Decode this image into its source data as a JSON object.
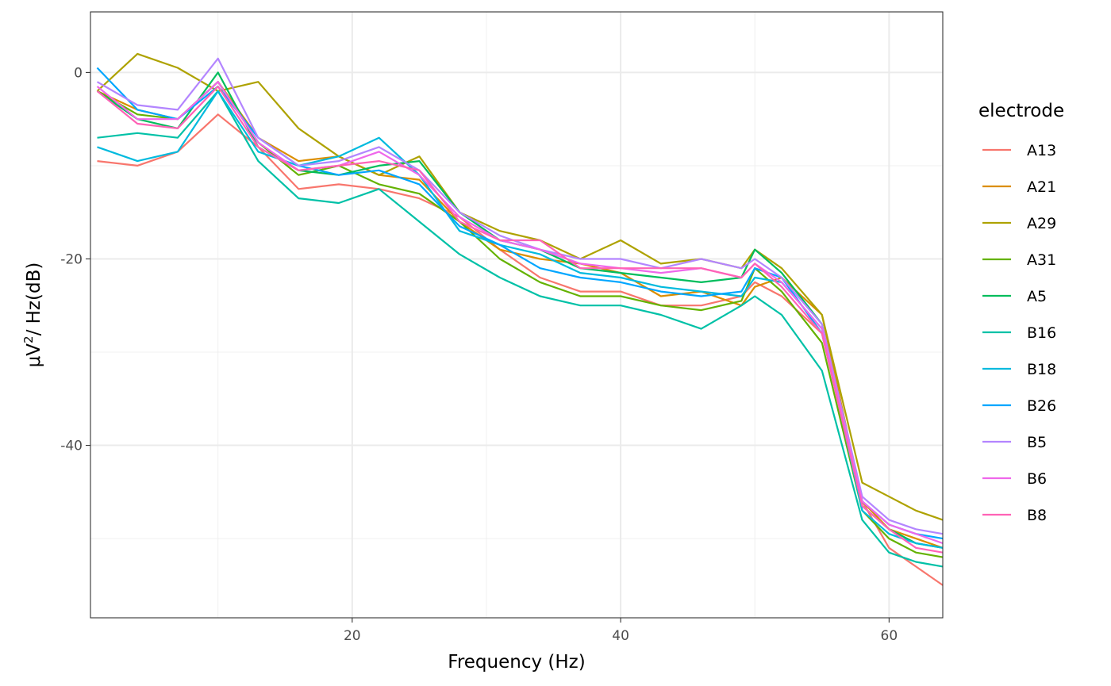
{
  "chart_data": {
    "type": "line",
    "title": "",
    "xlabel": "Frequency (Hz)",
    "ylabel_prefix": "μV",
    "ylabel_sup": "2",
    "ylabel_suffix": "/ Hz(dB)",
    "xlim": [
      0.5,
      64
    ],
    "ylim": [
      -58.5,
      6.5
    ],
    "x_ticks": [
      20,
      40,
      60
    ],
    "x_tick_labels": [
      "20",
      "40",
      "60"
    ],
    "y_ticks": [
      0,
      -20,
      -40
    ],
    "y_tick_labels": [
      "0",
      "-20",
      "-40"
    ],
    "x_minor": [
      10,
      30,
      50
    ],
    "y_minor": [
      -10,
      -30,
      -50
    ],
    "grid": true,
    "legend_title": "electrode",
    "legend_position": "right",
    "x": [
      1,
      4,
      7,
      10,
      13,
      16,
      19,
      22,
      25,
      28,
      31,
      34,
      37,
      40,
      43,
      46,
      49,
      50,
      52,
      55,
      58,
      60,
      62,
      64
    ],
    "series": [
      {
        "name": "A13",
        "color": "#F8766D",
        "values": [
          -9.5,
          -10.0,
          -8.5,
          -4.5,
          -8.0,
          -12.5,
          -12.0,
          -12.5,
          -13.5,
          -15.5,
          -19.0,
          -22.0,
          -23.5,
          -23.5,
          -25.0,
          -25.0,
          -24.0,
          -22.5,
          -24.0,
          -28.0,
          -46.0,
          -51.0,
          -53.0,
          -55.0
        ]
      },
      {
        "name": "A21",
        "color": "#DB8E00",
        "values": [
          -2.0,
          -4.0,
          -5.0,
          -1.0,
          -7.0,
          -9.5,
          -9.0,
          -11.0,
          -11.5,
          -16.0,
          -19.0,
          -20.0,
          -20.5,
          -21.5,
          -24.0,
          -23.5,
          -25.0,
          -23.0,
          -22.0,
          -26.0,
          -46.0,
          -49.0,
          -50.0,
          -51.0
        ]
      },
      {
        "name": "A29",
        "color": "#AEA200",
        "values": [
          -2.0,
          2.0,
          0.5,
          -2.0,
          -1.0,
          -6.0,
          -9.0,
          -11.0,
          -9.0,
          -15.0,
          -17.0,
          -18.0,
          -20.0,
          -18.0,
          -20.5,
          -20.0,
          -21.0,
          -19.0,
          -21.0,
          -26.0,
          -44.0,
          -45.5,
          -47.0,
          -48.0
        ]
      },
      {
        "name": "A31",
        "color": "#64B200",
        "values": [
          -2.0,
          -4.5,
          -5.0,
          -1.0,
          -7.5,
          -11.0,
          -10.0,
          -12.0,
          -13.0,
          -16.0,
          -20.0,
          -22.5,
          -24.0,
          -24.0,
          -25.0,
          -25.5,
          -24.5,
          -21.0,
          -23.5,
          -29.0,
          -47.0,
          -50.0,
          -51.5,
          -52.0
        ]
      },
      {
        "name": "A5",
        "color": "#00BD5C",
        "values": [
          -2.0,
          -5.0,
          -6.0,
          0.0,
          -8.0,
          -10.5,
          -11.0,
          -10.0,
          -9.5,
          -15.0,
          -18.0,
          -19.0,
          -21.0,
          -21.5,
          -22.0,
          -22.5,
          -22.0,
          -19.0,
          -21.5,
          -27.0,
          -46.5,
          -49.0,
          -50.5,
          -51.0
        ]
      },
      {
        "name": "B16",
        "color": "#00C1A7",
        "values": [
          -7.0,
          -6.5,
          -7.0,
          -2.0,
          -9.5,
          -13.5,
          -14.0,
          -12.5,
          -16.0,
          -19.5,
          -22.0,
          -24.0,
          -25.0,
          -25.0,
          -26.0,
          -27.5,
          -25.0,
          -24.0,
          -26.0,
          -32.0,
          -48.0,
          -51.5,
          -52.5,
          -53.0
        ]
      },
      {
        "name": "B18",
        "color": "#00BADE",
        "values": [
          -8.0,
          -9.5,
          -8.5,
          -2.0,
          -8.5,
          -10.0,
          -9.0,
          -7.0,
          -11.0,
          -17.0,
          -18.5,
          -19.5,
          -21.5,
          -22.0,
          -23.0,
          -23.5,
          -24.0,
          -22.0,
          -22.5,
          -27.5,
          -47.0,
          -49.5,
          -50.5,
          -51.0
        ]
      },
      {
        "name": "B26",
        "color": "#00A6FF",
        "values": [
          0.5,
          -4.0,
          -5.0,
          -1.5,
          -7.0,
          -10.0,
          -11.0,
          -10.5,
          -12.0,
          -16.5,
          -18.5,
          -21.0,
          -22.0,
          -22.5,
          -23.5,
          -24.0,
          -23.5,
          -21.0,
          -22.0,
          -28.0,
          -46.0,
          -48.5,
          -49.5,
          -50.0
        ]
      },
      {
        "name": "B5",
        "color": "#B385FF",
        "values": [
          -1.0,
          -3.5,
          -4.0,
          1.5,
          -7.0,
          -10.0,
          -9.5,
          -8.0,
          -10.5,
          -15.0,
          -17.5,
          -19.0,
          -20.0,
          -20.0,
          -21.0,
          -20.0,
          -21.0,
          -20.0,
          -22.0,
          -27.0,
          -45.5,
          -48.0,
          -49.0,
          -49.5
        ]
      },
      {
        "name": "B6",
        "color": "#EF67EB",
        "values": [
          -1.5,
          -5.0,
          -5.0,
          -1.0,
          -7.5,
          -10.5,
          -10.0,
          -8.5,
          -11.0,
          -15.5,
          -18.0,
          -19.0,
          -20.5,
          -21.0,
          -21.5,
          -21.0,
          -22.0,
          -20.5,
          -22.5,
          -27.5,
          -46.0,
          -48.5,
          -49.5,
          -50.5
        ]
      },
      {
        "name": "B8",
        "color": "#FF63B6",
        "values": [
          -2.0,
          -5.5,
          -6.0,
          -1.5,
          -8.0,
          -10.5,
          -10.0,
          -9.5,
          -10.5,
          -16.0,
          -18.0,
          -18.0,
          -21.0,
          -21.0,
          -21.0,
          -21.0,
          -22.0,
          -20.5,
          -23.0,
          -28.0,
          -46.5,
          -49.0,
          -51.0,
          -51.5
        ]
      }
    ]
  }
}
